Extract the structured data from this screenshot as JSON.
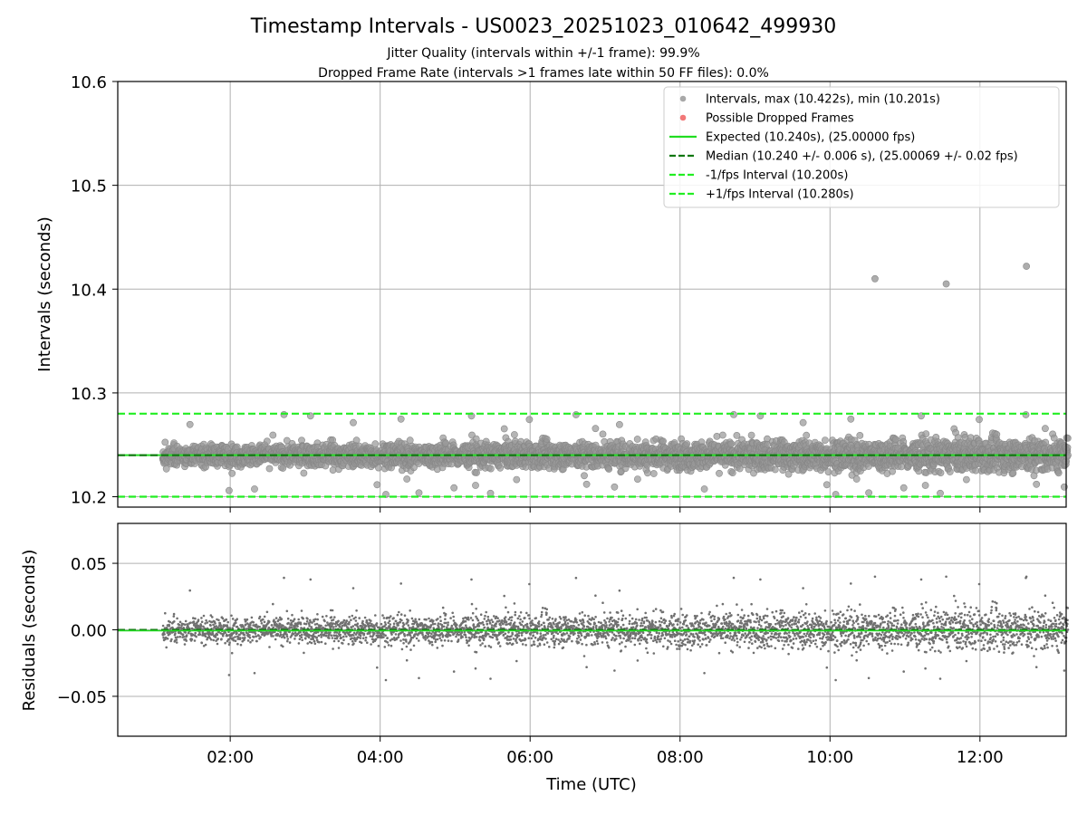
{
  "chart_data": {
    "type": "scatter",
    "title": "Timestamp Intervals - US0023_20251023_010642_499930",
    "subtitle_lines": [
      "Jitter Quality (intervals within +/-1 frame): 99.9%",
      "Dropped Frame Rate (intervals >1 frames late within 50 FF files): 0.0%"
    ],
    "xlabel": "Time (UTC)",
    "x_start_hours": 1.1,
    "x_end_hours": 13.2,
    "xlim_hours": [
      0.5,
      13.15
    ],
    "x_tick_values_hours": [
      2,
      4,
      6,
      8,
      10,
      12
    ],
    "x_tick_labels": [
      "02:00",
      "04:00",
      "06:00",
      "08:00",
      "10:00",
      "12:00"
    ],
    "n_points": 4200,
    "top_panel": {
      "ylabel": "Intervals (seconds)",
      "ylim": [
        10.19,
        10.6
      ],
      "y_tick_values": [
        10.2,
        10.3,
        10.4,
        10.5,
        10.6
      ],
      "y_tick_labels": [
        "10.2",
        "10.3",
        "10.4",
        "10.5",
        "10.6"
      ],
      "expected": 10.24,
      "median": 10.24,
      "minus_fps": 10.2,
      "plus_fps": 10.28,
      "max_interval": 10.422,
      "min_interval": 10.201,
      "outliers": [
        {
          "x_hours": 10.6,
          "y": 10.41
        },
        {
          "x_hours": 11.55,
          "y": 10.405
        },
        {
          "x_hours": 12.62,
          "y": 10.422
        }
      ],
      "legend": [
        {
          "label": "Intervals, max (10.422s), min (10.201s)",
          "kind": "marker",
          "color": "#999999"
        },
        {
          "label": "Possible Dropped Frames",
          "kind": "marker",
          "color": "#f06060"
        },
        {
          "label": "Expected (10.240s), (25.00000 fps)",
          "kind": "solid",
          "color": "#22dd22"
        },
        {
          "label": "Median (10.240 +/- 0.006 s), (25.00069 +/- 0.02 fps)",
          "kind": "dashed",
          "color": "#117711"
        },
        {
          "label": "-1/fps Interval (10.200s)",
          "kind": "dashed",
          "color": "#22ee22"
        },
        {
          "label": "+1/fps Interval (10.280s)",
          "kind": "dashed",
          "color": "#22ee22"
        }
      ]
    },
    "bottom_panel": {
      "ylabel": "Residuals (seconds)",
      "ylim": [
        -0.08,
        0.08
      ],
      "y_tick_values": [
        0.05,
        0.0,
        -0.05
      ],
      "y_tick_labels": [
        "0.05",
        "0.00",
        "−0.05"
      ],
      "zero_line_color": "#22dd22"
    },
    "colors": {
      "point": "#999999",
      "point_edge": "#888888",
      "residual_point": "#707070",
      "grid": "#b0b0b0"
    }
  }
}
